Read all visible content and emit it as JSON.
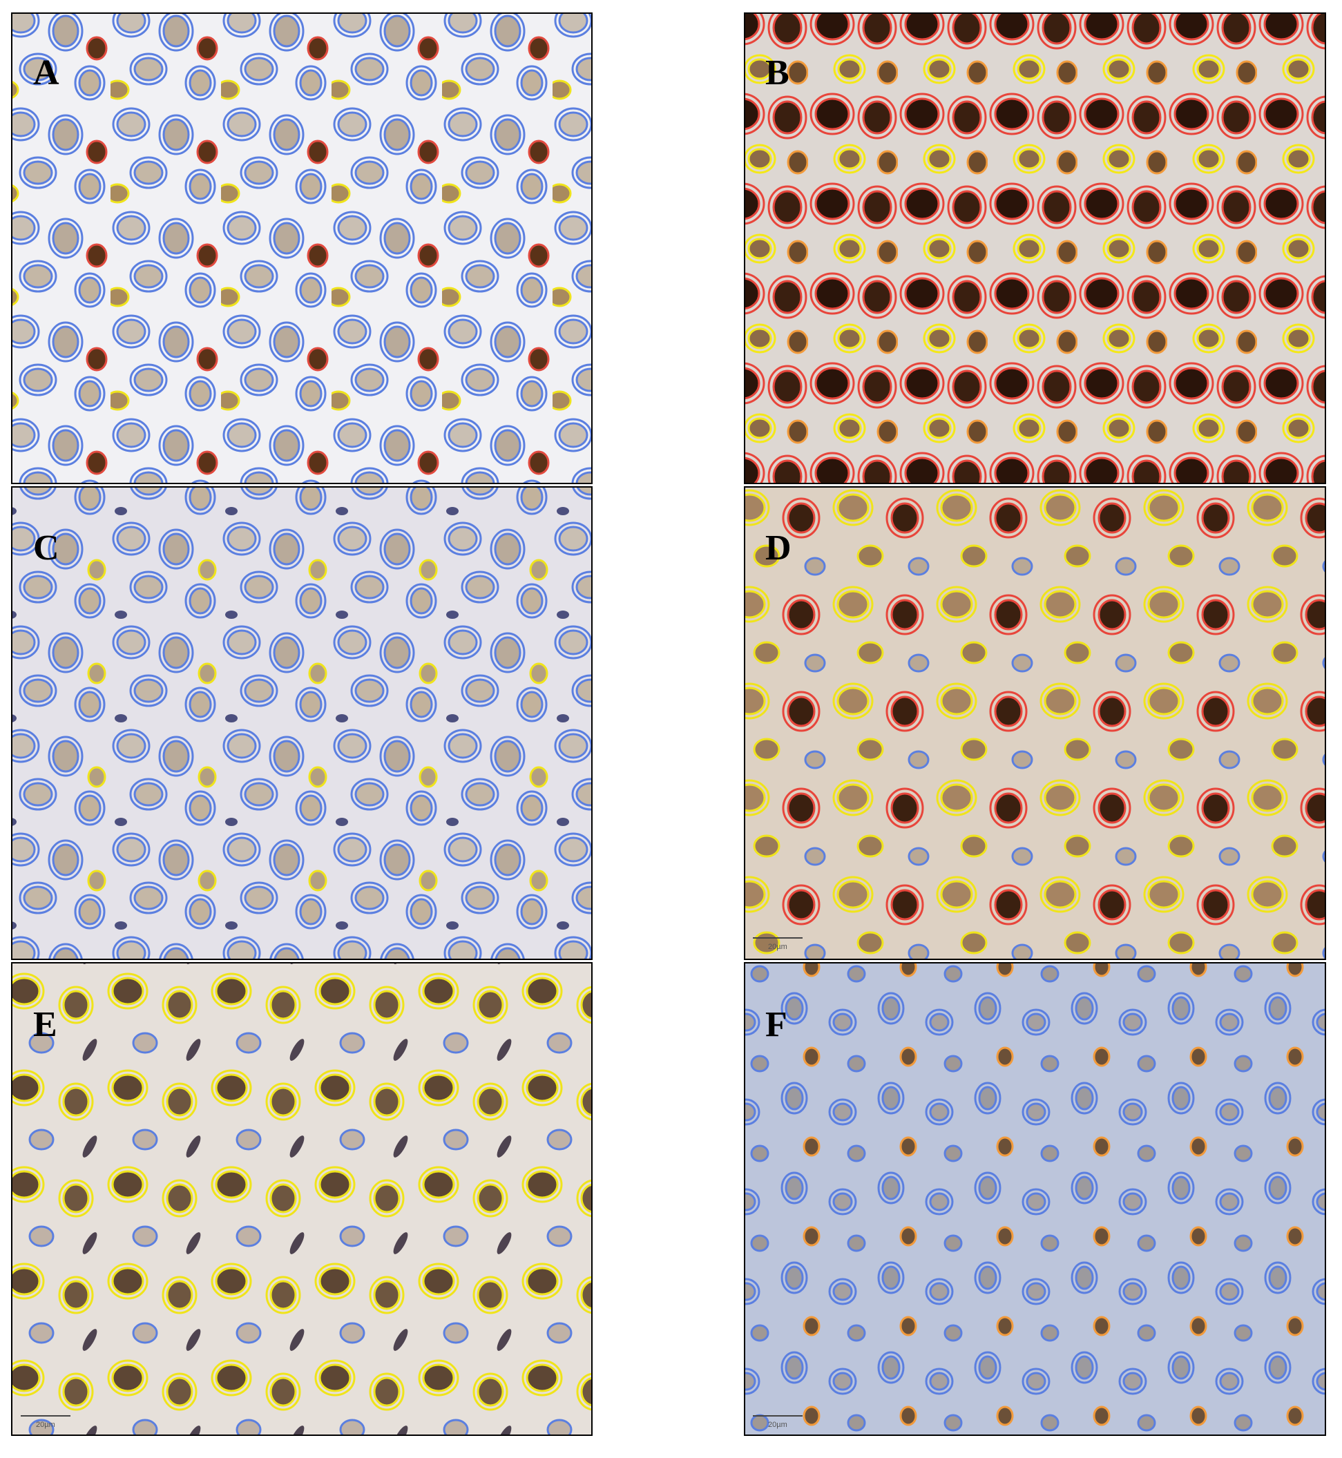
{
  "panels": [
    {
      "label": "A"
    },
    {
      "label": "B"
    },
    {
      "label": "C"
    },
    {
      "label": "D",
      "scale_label": "20µm"
    },
    {
      "label": "E",
      "scale_label": "20µm"
    },
    {
      "label": "F",
      "scale_label": "20µm"
    }
  ]
}
